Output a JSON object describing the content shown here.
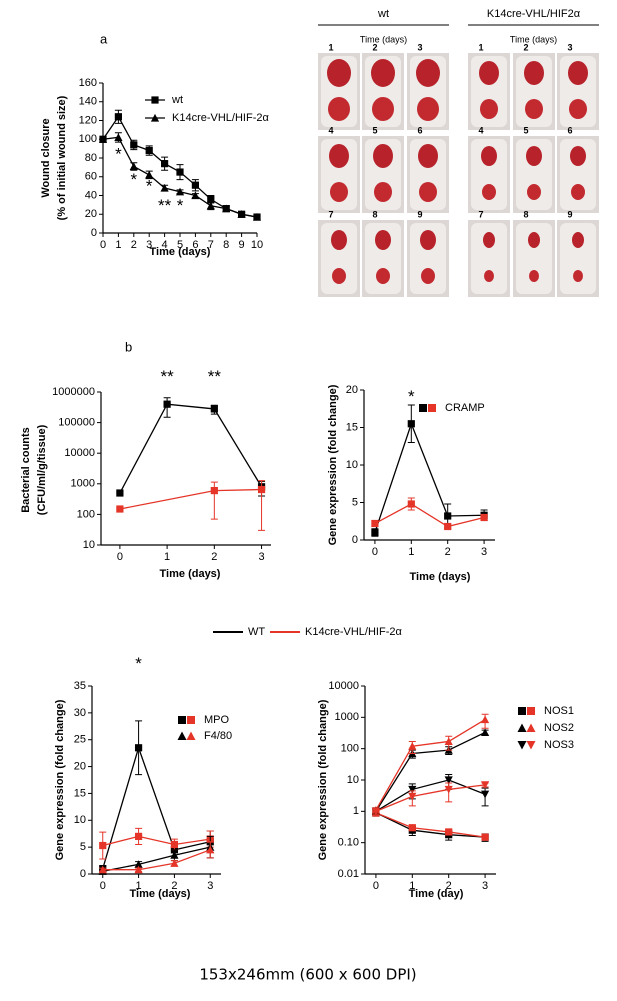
{
  "panel_labels": [
    "a",
    "b"
  ],
  "photos": {
    "groups": [
      {
        "title": "wt",
        "subtitle": "Time (days)",
        "labels": [
          "1",
          "2",
          "3",
          "4",
          "5",
          "6",
          "7",
          "8",
          "9"
        ]
      },
      {
        "title": "K14cre-VHL/HIF2α",
        "subtitle": "Time (days)",
        "labels": [
          "1",
          "2",
          "3",
          "4",
          "5",
          "6",
          "7",
          "8",
          "9"
        ]
      }
    ]
  },
  "chart_data": [
    {
      "type": "line",
      "xlabel": "Time (days)",
      "ylabel": [
        "Wound closure",
        "(% of initial wound size)"
      ],
      "x": [
        0,
        1,
        2,
        3,
        4,
        5,
        6,
        7,
        8,
        9,
        10
      ],
      "xlim": [
        0,
        10
      ],
      "xticks": [
        0,
        1,
        2,
        3,
        4,
        5,
        6,
        7,
        8,
        9,
        10
      ],
      "ylim": [
        0,
        160
      ],
      "yticks": [
        0,
        20,
        40,
        60,
        80,
        100,
        120,
        140,
        160
      ],
      "groups": [
        {
          "label": "wt",
          "marker": "square",
          "series": [
            {
              "color": "#000000",
              "values": [
                100,
                124,
                94,
                88,
                74,
                65,
                51,
                36,
                26,
                20,
                17
              ],
              "errors": [
                0,
                7,
                5,
                5,
                7,
                8,
                6,
                4,
                3,
                2,
                2
              ]
            }
          ]
        },
        {
          "label": "K14cre-VHL/HIF-2α",
          "marker": "triangle",
          "series": [
            {
              "color": "#000000",
              "values": [
                100,
                102,
                71,
                62,
                48,
                44,
                40,
                29,
                26,
                20,
                17
              ],
              "errors": [
                0,
                5,
                4,
                4,
                3,
                2,
                2,
                4,
                3,
                2,
                2
              ]
            }
          ]
        }
      ],
      "annotations": [
        {
          "text": "*",
          "x": 1,
          "y": 83
        },
        {
          "text": "*",
          "x": 2,
          "y": 56
        },
        {
          "text": "*",
          "x": 3,
          "y": 49
        },
        {
          "text": "**",
          "x": 4,
          "y": 28
        },
        {
          "text": "*",
          "x": 5,
          "y": 28
        }
      ]
    },
    {
      "type": "line",
      "log": true,
      "xlabel": "Time (days)",
      "ylabel": [
        "Bacterial counts",
        "(CFU/ml/g/tissue)"
      ],
      "x": [
        0,
        1,
        2,
        3
      ],
      "xlim": [
        -0.4,
        3.2
      ],
      "xticks": [
        0,
        1,
        2,
        3
      ],
      "ylim": [
        10,
        1000000
      ],
      "yticks": [
        10,
        100,
        1000,
        10000,
        100000,
        1000000
      ],
      "groups": [
        {
          "marker": "square",
          "series": [
            {
              "color": "#000000",
              "values": [
                500,
                400000,
                280000,
                800
              ],
              "errors": [
                0,
                250000,
                90000,
                400
              ]
            },
            {
              "color": "#e53528",
              "x": [
                0,
                2,
                3
              ],
              "values": [
                150,
                600,
                650
              ],
              "errors": [
                0,
                530,
                620
              ]
            }
          ]
        }
      ],
      "annotations": [
        {
          "text": "**",
          "x": 1,
          "y": 3000000
        },
        {
          "text": "**",
          "x": 2,
          "y": 3000000
        }
      ]
    },
    {
      "type": "line",
      "xlabel": "Time (days)",
      "ylabel": "Gene expression (fold change)",
      "x": [
        0,
        1,
        2,
        3
      ],
      "xlim": [
        -0.3,
        3.3
      ],
      "xticks": [
        0,
        1,
        2,
        3
      ],
      "ylim": [
        0,
        20
      ],
      "yticks": [
        0,
        5,
        10,
        15,
        20
      ],
      "groups": [
        {
          "label": "CRAMP",
          "marker": "square",
          "series": [
            {
              "color": "#000000",
              "values": [
                1,
                15.5,
                3.2,
                3.3
              ],
              "errors": [
                0.5,
                2.5,
                1.6,
                0.7
              ]
            },
            {
              "color": "#e53528",
              "values": [
                2.2,
                4.8,
                1.8,
                3.0
              ],
              "errors": [
                0.4,
                0.8,
                0.3,
                0.4
              ]
            }
          ]
        }
      ],
      "annotations": [
        {
          "text": "*",
          "x": 1,
          "y": 19
        }
      ]
    },
    {
      "type": "line",
      "xlabel": "Time (days)",
      "ylabel": "Gene expression (fold change)",
      "x": [
        0,
        1,
        2,
        3
      ],
      "xlim": [
        -0.3,
        3.3
      ],
      "xticks": [
        0,
        1,
        2,
        3
      ],
      "ylim": [
        0,
        35
      ],
      "yticks": [
        0,
        5,
        10,
        15,
        20,
        25,
        30,
        35
      ],
      "groups": [
        {
          "label": "MPO",
          "marker": "square",
          "series": [
            {
              "color": "#000000",
              "values": [
                1,
                23.5,
                4.5,
                6
              ],
              "errors": [
                0.5,
                5,
                1.5,
                2
              ]
            },
            {
              "color": "#e53528",
              "values": [
                5.3,
                7,
                5.5,
                6.5
              ],
              "errors": [
                2.5,
                1.5,
                1,
                1.5
              ]
            }
          ]
        },
        {
          "label": "F4/80",
          "marker": "triangle",
          "series": [
            {
              "color": "#000000",
              "values": [
                0.5,
                1.8,
                3.5,
                5
              ],
              "errors": [
                0.3,
                0.5,
                1,
                2
              ]
            },
            {
              "color": "#e53528",
              "values": [
                0.8,
                0.8,
                2,
                4.5
              ],
              "errors": [
                0.3,
                0.3,
                0.5,
                1.5
              ]
            }
          ]
        }
      ],
      "annotations": [
        {
          "text": "*",
          "x": 1,
          "y": 39
        }
      ]
    },
    {
      "type": "line",
      "log": true,
      "xlabel": "Time (day)",
      "ylabel": "Gene expression (fold change)",
      "x": [
        0,
        1,
        2,
        3
      ],
      "xlim": [
        -0.3,
        3.3
      ],
      "xticks": [
        0,
        1,
        2,
        3
      ],
      "ylim": [
        0.01,
        10000
      ],
      "yticks": [
        0.01,
        {
          "value": 0.1,
          "label": "0.10"
        },
        1,
        10,
        100,
        1000,
        10000
      ],
      "groups": [
        {
          "label": "NOS1",
          "marker": "square",
          "series": [
            {
              "color": "#000000",
              "values": [
                0.9,
                0.25,
                0.18,
                0.15
              ],
              "errors": [
                0.2,
                0.08,
                0.06,
                0.04
              ]
            },
            {
              "color": "#e53528",
              "values": [
                0.9,
                0.3,
                0.22,
                0.15
              ],
              "errors": [
                0.2,
                0.05,
                0.04,
                0.03
              ]
            }
          ]
        },
        {
          "label": "NOS2",
          "marker": "triangle",
          "series": [
            {
              "color": "#000000",
              "values": [
                1,
                70,
                90,
                330
              ],
              "errors": [
                0.2,
                20,
                25,
                60
              ]
            },
            {
              "color": "#e53528",
              "values": [
                1.1,
                120,
                170,
                850
              ],
              "errors": [
                0.2,
                50,
                80,
                400
              ]
            }
          ]
        },
        {
          "label": "NOS3",
          "marker": "triangle-down",
          "series": [
            {
              "color": "#000000",
              "values": [
                1,
                5,
                10,
                3.5
              ],
              "errors": [
                0.2,
                2.5,
                5,
                2
              ]
            },
            {
              "color": "#e53528",
              "values": [
                1,
                3,
                5,
                7
              ],
              "errors": [
                0.2,
                1.5,
                3,
                1
              ]
            }
          ]
        }
      ]
    }
  ],
  "legend": [
    {
      "name": "WT",
      "color": "#000000"
    },
    {
      "name": "K14cre-VHL/HIF-2α",
      "color": "#e53528"
    }
  ],
  "caption": "153x246mm (600 x 600 DPI)"
}
